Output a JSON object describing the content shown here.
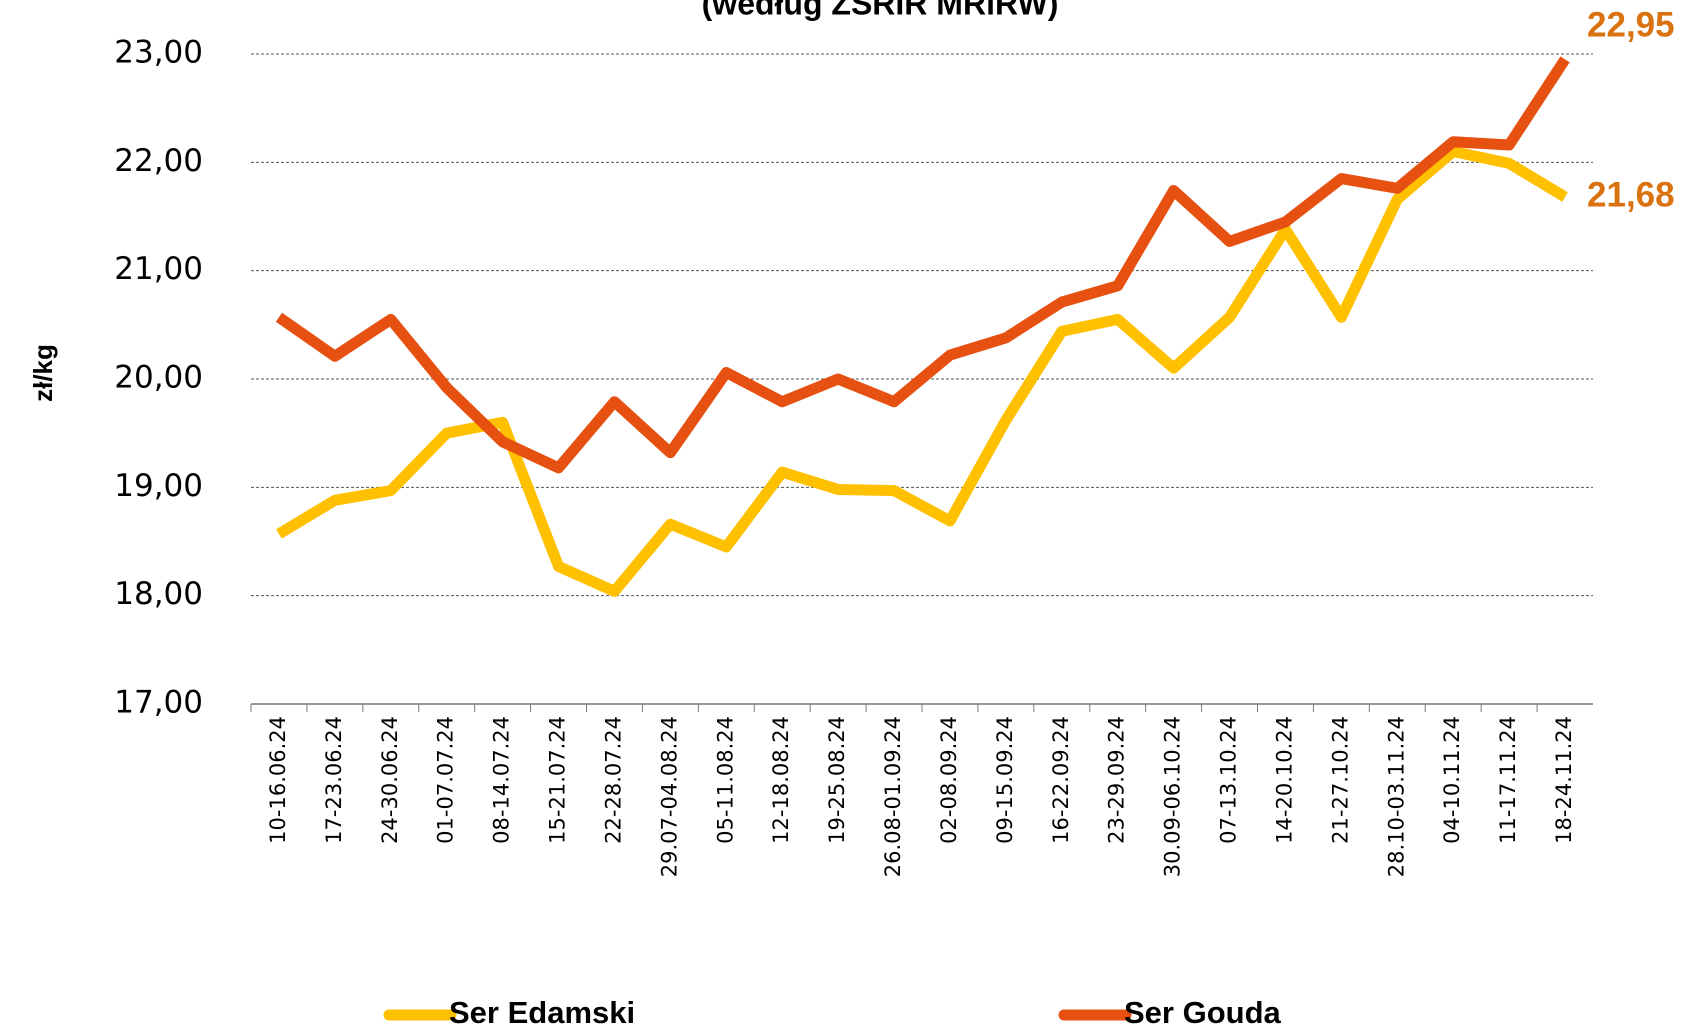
{
  "chart_data": {
    "type": "line",
    "title": "(według ZSRIR MRiRW)",
    "y_label": "zł/kg",
    "categories": [
      "10-16.06.24",
      "17-23.06.24",
      "24-30.06.24",
      "01-07.07.24",
      "08-14.07.24",
      "15-21.07.24",
      "22-28.07.24",
      "29.07-04.08.24",
      "05-11.08.24",
      "12-18.08.24",
      "19-25.08.24",
      "26.08-01.09.24",
      "02-08.09.24",
      "09-15.09.24",
      "16-22.09.24",
      "23-29.09.24",
      "30.09-06.10.24",
      "07-13.10.24",
      "14-20.10.24",
      "21-27.10.24",
      "28.10-03.11.24",
      "04-10.11.24",
      "11-17.11.24",
      "18-24.11.24"
    ],
    "series": [
      {
        "name": "Ser Edamski",
        "color": "#ffc000",
        "values": [
          18.57,
          18.88,
          18.97,
          19.5,
          19.6,
          18.27,
          18.04,
          18.66,
          18.45,
          19.14,
          18.98,
          18.97,
          18.69,
          19.62,
          20.44,
          20.55,
          20.1,
          20.57,
          21.38,
          20.57,
          21.66,
          22.1,
          21.99,
          21.68
        ],
        "value_labels": [
          null,
          null,
          null,
          null,
          null,
          null,
          null,
          null,
          null,
          null,
          null,
          null,
          null,
          null,
          null,
          null,
          null,
          null,
          null,
          null,
          null,
          null,
          null,
          "21,68"
        ]
      },
      {
        "name": "Ser Gouda",
        "color": "#e65010",
        "values": [
          20.57,
          20.21,
          20.55,
          19.92,
          19.42,
          19.18,
          19.79,
          19.32,
          20.06,
          19.79,
          20.0,
          19.79,
          20.22,
          20.38,
          20.71,
          20.86,
          21.74,
          21.27,
          21.45,
          21.85,
          21.76,
          22.19,
          22.16,
          22.95
        ],
        "value_labels": [
          null,
          null,
          null,
          null,
          null,
          null,
          null,
          null,
          null,
          null,
          null,
          null,
          null,
          null,
          null,
          null,
          null,
          null,
          null,
          null,
          null,
          null,
          null,
          "22,95"
        ]
      }
    ],
    "ylim": [
      17,
      23
    ],
    "yticks": [
      {
        "value": 17,
        "label": "17,00"
      },
      {
        "value": 18,
        "label": "18,00"
      },
      {
        "value": 19,
        "label": "19,00"
      },
      {
        "value": 20,
        "label": "20,00"
      },
      {
        "value": 21,
        "label": "21,00"
      },
      {
        "value": 22,
        "label": "22,00"
      },
      {
        "value": 23,
        "label": "23,00"
      }
    ],
    "grid": true,
    "legend": "bottom",
    "label_color": "#d9720f"
  }
}
